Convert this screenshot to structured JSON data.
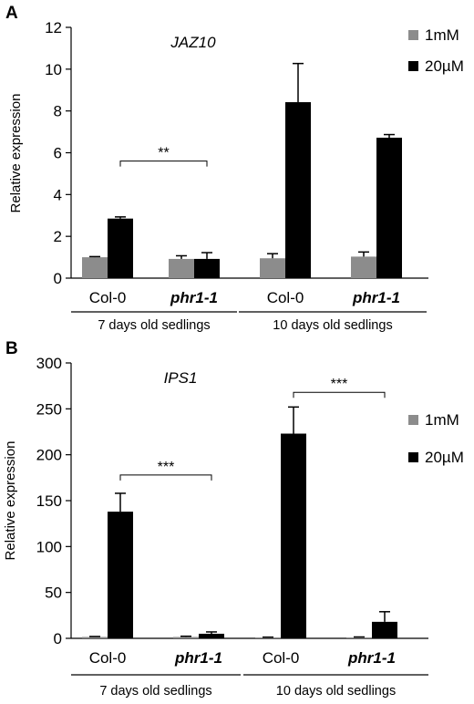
{
  "chart_data": [
    {
      "type": "bar",
      "panel": "A",
      "title": "JAZ10",
      "ylabel": "Relative expression",
      "ylim": [
        0,
        12
      ],
      "yticks": [
        "0",
        "2",
        "4",
        "6",
        "8",
        "10",
        "12"
      ],
      "categories": [
        "Col-0",
        "phr1-1",
        "Col-0",
        "phr1-1"
      ],
      "category_italic": [
        false,
        true,
        false,
        true
      ],
      "groups": [
        {
          "label": "7 days old sedlings",
          "span": [
            0,
            1
          ]
        },
        {
          "label": "10 days old sedlings",
          "span": [
            2,
            3
          ]
        }
      ],
      "series": [
        {
          "name": "1mM",
          "color": "#8c8c8c",
          "values": [
            1.0,
            0.92,
            0.95,
            1.03
          ],
          "errors": [
            0.03,
            0.15,
            0.22,
            0.22
          ]
        },
        {
          "name": "20µM",
          "color": "#000000",
          "values": [
            2.85,
            0.92,
            8.42,
            6.72
          ],
          "errors": [
            0.08,
            0.3,
            1.85,
            0.15
          ]
        }
      ],
      "significance": [
        {
          "label": "**",
          "from": [
            0,
            1
          ],
          "to": [
            1,
            1
          ],
          "y": 5.6
        }
      ]
    },
    {
      "type": "bar",
      "panel": "B",
      "title": "IPS1",
      "ylabel": "Relative expression",
      "ylim": [
        0,
        300
      ],
      "yticks": [
        "0",
        "50",
        "100",
        "150",
        "200",
        "250",
        "300"
      ],
      "categories": [
        "Col-0",
        "phr1-1",
        "Col-0",
        "phr1-1"
      ],
      "category_italic": [
        false,
        true,
        false,
        true
      ],
      "groups": [
        {
          "label": "7 days old sedlings",
          "span": [
            0,
            1
          ]
        },
        {
          "label": "10 days old sedlings",
          "span": [
            2,
            3
          ]
        }
      ],
      "series": [
        {
          "name": "1mM",
          "color": "#8c8c8c",
          "values": [
            1.5,
            1.5,
            1.0,
            1.0
          ],
          "errors": [
            0.5,
            0.8,
            0.3,
            0.5
          ]
        },
        {
          "name": "20µM",
          "color": "#000000",
          "values": [
            138,
            5,
            223,
            18
          ],
          "errors": [
            20,
            2,
            29,
            11
          ]
        }
      ],
      "significance": [
        {
          "label": "***",
          "from": [
            0,
            1
          ],
          "to": [
            1,
            1
          ],
          "y": 178
        },
        {
          "label": "***",
          "from": [
            2,
            1
          ],
          "to": [
            3,
            1
          ],
          "y": 268
        }
      ]
    }
  ]
}
